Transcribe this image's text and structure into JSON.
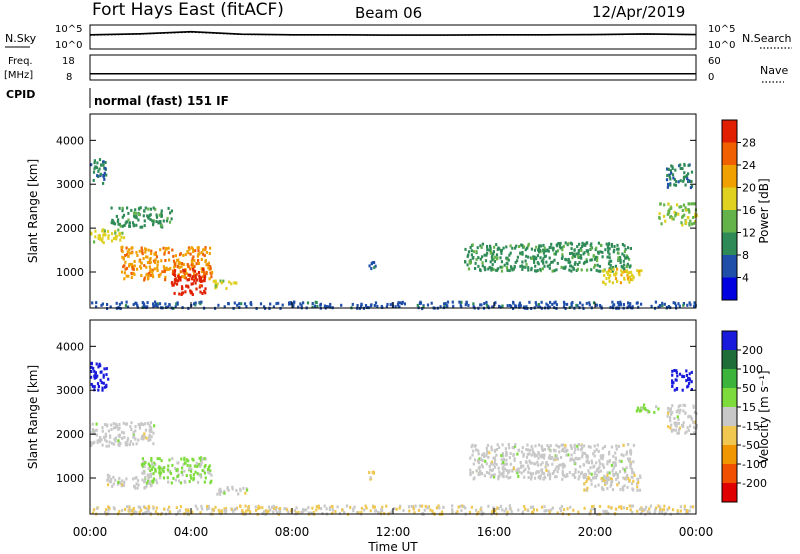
{
  "header": {
    "station": "Fort Hays East (fitACF)",
    "beam": "Beam 06",
    "date": "12/Apr/2019"
  },
  "noise_panel": {
    "left_label": "N.Sky",
    "right_label": "N.Search",
    "left_ticks": [
      "10^5",
      "10^0"
    ],
    "right_ticks": [
      "10^5",
      "10^0"
    ]
  },
  "freq_panel": {
    "left_label_1": "Freq.",
    "left_label_2": "[MHz]",
    "right_label": "Nave",
    "left_ticks": [
      "18",
      "8"
    ],
    "right_ticks": [
      "60",
      "0"
    ]
  },
  "cpid": {
    "label": "CPID",
    "text": "normal (fast) 151 IF"
  },
  "x_axis": {
    "label": "Time UT",
    "ticks": [
      "00:00",
      "04:00",
      "08:00",
      "12:00",
      "16:00",
      "20:00",
      "00:00"
    ]
  },
  "power_panel": {
    "ylabel": "Slant Range [km]",
    "yticks": [
      "4000",
      "3000",
      "2000",
      "1000"
    ],
    "colorbar_label": "Power [dB]",
    "colorbar_ticks": [
      "28",
      "24",
      "20",
      "16",
      "12",
      "8",
      "4"
    ],
    "colors": [
      "#0000e0",
      "#1f4fa8",
      "#2e8b57",
      "#63b34a",
      "#e0d020",
      "#f0a000",
      "#f06000",
      "#e02000"
    ]
  },
  "velocity_panel": {
    "ylabel": "Slant Range [km]",
    "yticks": [
      "4000",
      "3000",
      "2000",
      "1000"
    ],
    "colorbar_label": "Velocity [m s⁻¹]",
    "colorbar_ticks": [
      "200",
      "100",
      "50",
      "15",
      "-15",
      "-50",
      "-100",
      "-200"
    ],
    "colors": [
      "#1a1adc",
      "#1f6e3a",
      "#3cb43c",
      "#7ddc3c",
      "#c8c8c8",
      "#f0c850",
      "#f09600",
      "#f05000",
      "#e00000"
    ]
  },
  "chart_data": [
    {
      "type": "line",
      "title": "Fort Hays East (fitACF)",
      "series_note_left": "N.Sky",
      "ylim": [
        1,
        100000
      ],
      "yscale": "log",
      "x": [
        0,
        2,
        4,
        6,
        8,
        10,
        12,
        14,
        16,
        18,
        20,
        22,
        24
      ],
      "series": [
        {
          "name": "N.Sky",
          "values": [
            900,
            1500,
            4000,
            1200,
            900,
            900,
            800,
            800,
            900,
            900,
            1000,
            1400,
            1000
          ]
        },
        {
          "name": "N.Search",
          "values": [
            700,
            1200,
            3000,
            1000,
            800,
            800,
            700,
            700,
            800,
            800,
            900,
            1100,
            900
          ]
        }
      ]
    },
    {
      "type": "line",
      "ylim": [
        8,
        18
      ],
      "x": [
        0,
        24
      ],
      "series": [
        {
          "name": "Freq.",
          "values": [
            10.5,
            10.5
          ]
        },
        {
          "name": "Nave",
          "values": [
            16,
            16
          ]
        }
      ]
    },
    {
      "type": "heatmap",
      "quantity": "Power [dB]",
      "xlim": [
        0,
        24
      ],
      "ylim": [
        180,
        4600
      ],
      "colorbar_range": [
        0,
        30
      ],
      "regions": [
        {
          "t0": 0.0,
          "t1": 0.6,
          "r0": 3050,
          "r1": 3650,
          "value": 8
        },
        {
          "t0": 0.0,
          "t1": 1.4,
          "r0": 1700,
          "r1": 2000,
          "value": 16
        },
        {
          "t0": 1.2,
          "t1": 4.8,
          "r0": 850,
          "r1": 1600,
          "value": 22
        },
        {
          "t0": 3.2,
          "t1": 4.6,
          "r0": 500,
          "r1": 1100,
          "value": 28
        },
        {
          "t0": 0.8,
          "t1": 3.2,
          "r0": 2050,
          "r1": 2500,
          "value": 10
        },
        {
          "t0": 4.8,
          "t1": 5.8,
          "r0": 650,
          "r1": 850,
          "value": 16
        },
        {
          "t0": 0.0,
          "t1": 24.0,
          "r0": 200,
          "r1": 350,
          "value": 6
        },
        {
          "t0": 14.8,
          "t1": 21.4,
          "r0": 1050,
          "r1": 1700,
          "value": 10
        },
        {
          "t0": 20.2,
          "t1": 21.8,
          "r0": 750,
          "r1": 1100,
          "value": 18
        },
        {
          "t0": 22.5,
          "t1": 24.0,
          "r0": 2100,
          "r1": 2600,
          "value": 14
        },
        {
          "t0": 22.8,
          "t1": 23.8,
          "r0": 2950,
          "r1": 3500,
          "value": 8
        },
        {
          "t0": 11.0,
          "t1": 11.3,
          "r0": 1100,
          "r1": 1300,
          "value": 6
        }
      ]
    },
    {
      "type": "heatmap",
      "quantity": "Velocity [m s⁻¹]",
      "xlim": [
        0,
        24
      ],
      "ylim": [
        180,
        4600
      ],
      "colorbar_range": [
        -200,
        200
      ],
      "regions": [
        {
          "t0": 0.0,
          "t1": 0.7,
          "r0": 3000,
          "r1": 3650,
          "value": 250
        },
        {
          "t0": 0.0,
          "t1": 2.5,
          "r0": 1750,
          "r1": 2300,
          "value": 0
        },
        {
          "t0": 2.0,
          "t1": 4.8,
          "r0": 900,
          "r1": 1500,
          "value": 30
        },
        {
          "t0": 0.6,
          "t1": 2.4,
          "r0": 800,
          "r1": 1100,
          "value": 0
        },
        {
          "t0": 5.0,
          "t1": 6.2,
          "r0": 650,
          "r1": 850,
          "value": 0
        },
        {
          "t0": 0.0,
          "t1": 24.0,
          "r0": 200,
          "r1": 400,
          "value": -20
        },
        {
          "t0": 15.0,
          "t1": 21.5,
          "r0": 1000,
          "r1": 1800,
          "value": 0
        },
        {
          "t0": 19.5,
          "t1": 21.8,
          "r0": 750,
          "r1": 1100,
          "value": -10
        },
        {
          "t0": 22.8,
          "t1": 24.0,
          "r0": 2050,
          "r1": 2700,
          "value": 0
        },
        {
          "t0": 21.5,
          "t1": 22.5,
          "r0": 2500,
          "r1": 2700,
          "value": 40
        },
        {
          "t0": 23.0,
          "t1": 23.8,
          "r0": 3000,
          "r1": 3500,
          "value": 250
        },
        {
          "t0": 11.0,
          "t1": 11.2,
          "r0": 1000,
          "r1": 1200,
          "value": -40
        }
      ]
    }
  ]
}
